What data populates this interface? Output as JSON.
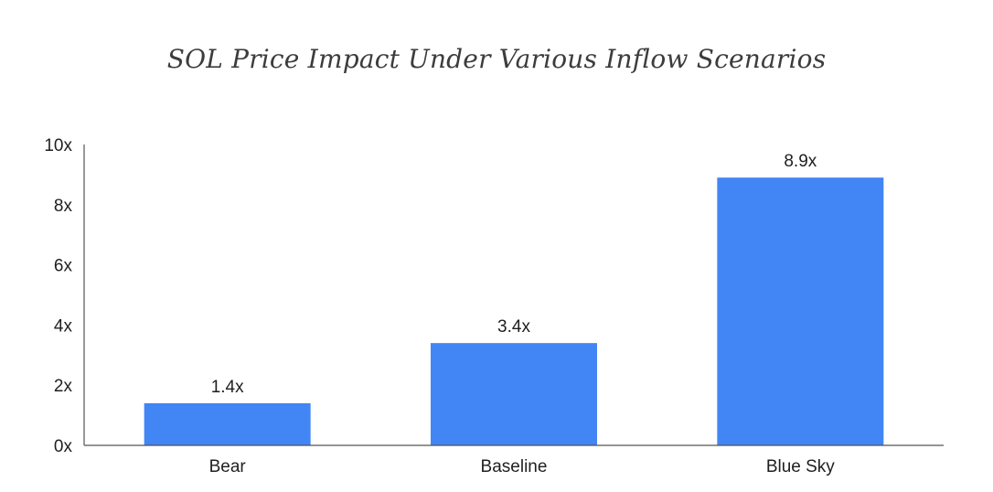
{
  "chart_data": {
    "type": "bar",
    "title": "SOL Price Impact Under Various Inflow Scenarios",
    "xlabel": "",
    "ylabel": "",
    "categories": [
      "Bear",
      "Baseline",
      "Blue Sky"
    ],
    "values": [
      1.4,
      3.4,
      8.9
    ],
    "data_labels": [
      "1.4x",
      "3.4x",
      "8.9x"
    ],
    "ylim": [
      0,
      10
    ],
    "y_ticks": [
      0,
      2,
      4,
      6,
      8,
      10
    ],
    "y_tick_labels": [
      "0x",
      "2x",
      "4x",
      "6x",
      "8x",
      "10x"
    ],
    "bar_color": "#4285f4",
    "axis_color": "#555555",
    "grid": false,
    "legend": "none"
  }
}
